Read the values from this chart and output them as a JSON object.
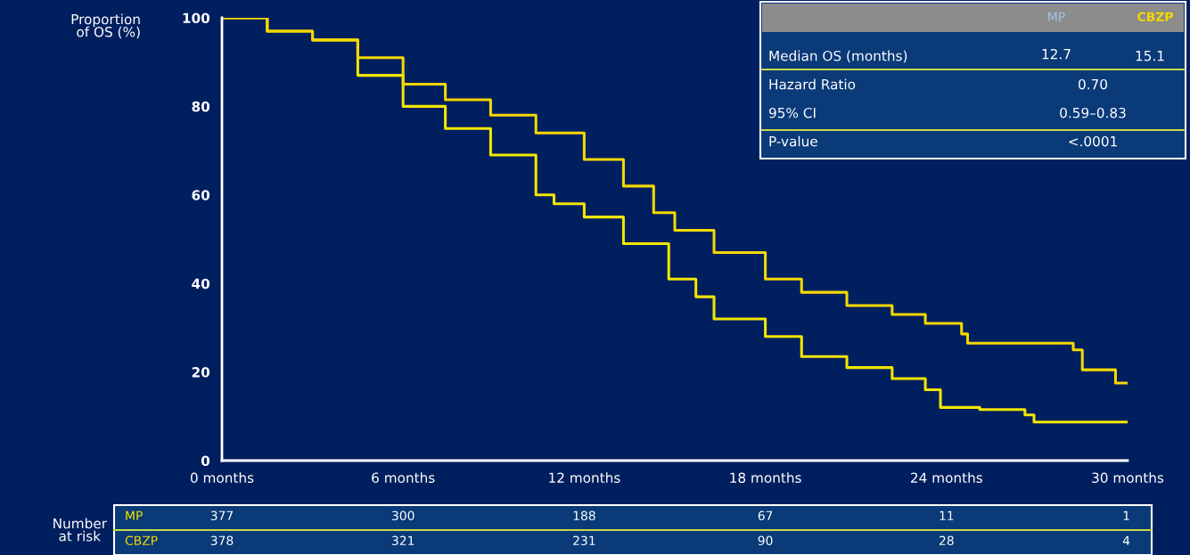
{
  "chart_data": {
    "type": "step",
    "ylabel": "Proportion\nof OS (%)",
    "xlim": [
      0,
      30
    ],
    "ylim": [
      0,
      100
    ],
    "xticks": [
      {
        "value": 0,
        "label": "0 months"
      },
      {
        "value": 6,
        "label": "6 months"
      },
      {
        "value": 12,
        "label": "12 months"
      },
      {
        "value": 18,
        "label": "18 months"
      },
      {
        "value": 24,
        "label": "24 months"
      },
      {
        "value": 30,
        "label": "30 months"
      }
    ],
    "yticks": [
      0,
      20,
      40,
      60,
      80,
      100
    ],
    "grid": false,
    "legend": false,
    "marker": "none",
    "line_style": "solid",
    "series": [
      {
        "name": "MP",
        "color": "#f2e600",
        "x": [
          0,
          1.5,
          3,
          4.5,
          6,
          7.4,
          8.9,
          10.4,
          11,
          12,
          13.3,
          14.8,
          15.7,
          16.3,
          18,
          19.2,
          20.7,
          22.2,
          23.3,
          23.8,
          25.1,
          26.6,
          26.9,
          30
        ],
        "values": [
          100,
          97,
          95,
          87,
          80,
          75,
          69,
          60,
          58,
          55,
          49,
          41,
          37,
          32,
          28,
          23.5,
          21,
          18.5,
          16,
          12,
          11.5,
          10.3,
          8.7,
          8.7
        ]
      },
      {
        "name": "CBZP",
        "color": "#f5d800",
        "x": [
          0,
          1.5,
          3,
          4.5,
          6,
          7.4,
          8.9,
          10.4,
          12,
          13.3,
          14.3,
          15,
          16.3,
          18,
          19.2,
          20.7,
          22.2,
          23.3,
          24.5,
          24.7,
          28.1,
          28.2,
          28.5,
          29.4,
          29.6,
          30
        ],
        "values": [
          100,
          97,
          95,
          91,
          85,
          81.5,
          78,
          74,
          68,
          62,
          56,
          52,
          47,
          41,
          38,
          35,
          33,
          31,
          28.6,
          26.5,
          26.5,
          25,
          20.5,
          20.5,
          17.5,
          17.5
        ]
      }
    ],
    "annotations": [
      "Number\nat risk",
      "377",
      "300",
      "188",
      "67",
      "11",
      "1",
      "378",
      "321",
      "231",
      "90",
      "28",
      "4",
      "Median OS (months)",
      "12.7",
      "15.1",
      "Hazard Ratio",
      "0.70",
      "95% CI",
      "0.59–0.83",
      "P-value",
      "<.0001",
      "MP",
      "CBZP"
    ]
  }
}
